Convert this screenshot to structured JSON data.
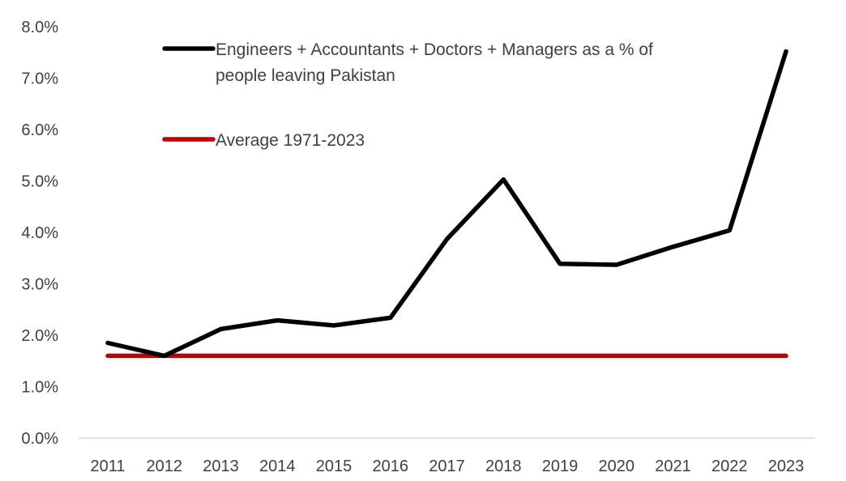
{
  "chart_data": {
    "type": "line",
    "title": "",
    "xlabel": "",
    "ylabel": "",
    "categories": [
      "2011",
      "2012",
      "2013",
      "2014",
      "2015",
      "2016",
      "2017",
      "2018",
      "2019",
      "2020",
      "2021",
      "2022",
      "2023"
    ],
    "ylim": [
      0,
      8
    ],
    "yticks": [
      0,
      1,
      2,
      3,
      4,
      5,
      6,
      7,
      8
    ],
    "ytick_labels": [
      "0.0%",
      "1.0%",
      "2.0%",
      "3.0%",
      "4.0%",
      "5.0%",
      "6.0%",
      "7.0%",
      "8.0%"
    ],
    "grid": false,
    "legend_position": "top-left",
    "series": [
      {
        "name": "Engineers + Accountants + Doctors + Managers as a % of people leaving Pakistan",
        "legend_lines": [
          "Engineers + Accountants + Doctors + Managers as a % of",
          "people leaving Pakistan"
        ],
        "color": "#000000",
        "values": [
          1.85,
          1.6,
          2.12,
          2.29,
          2.19,
          2.34,
          3.87,
          5.03,
          3.39,
          3.37,
          3.72,
          4.04,
          7.52
        ]
      },
      {
        "name": "Average 1971-2023",
        "legend_lines": [
          "Average 1971-2023"
        ],
        "color": "#C00000",
        "values": [
          1.6,
          1.6,
          1.6,
          1.6,
          1.6,
          1.6,
          1.6,
          1.6,
          1.6,
          1.6,
          1.6,
          1.6,
          1.6
        ]
      }
    ]
  }
}
